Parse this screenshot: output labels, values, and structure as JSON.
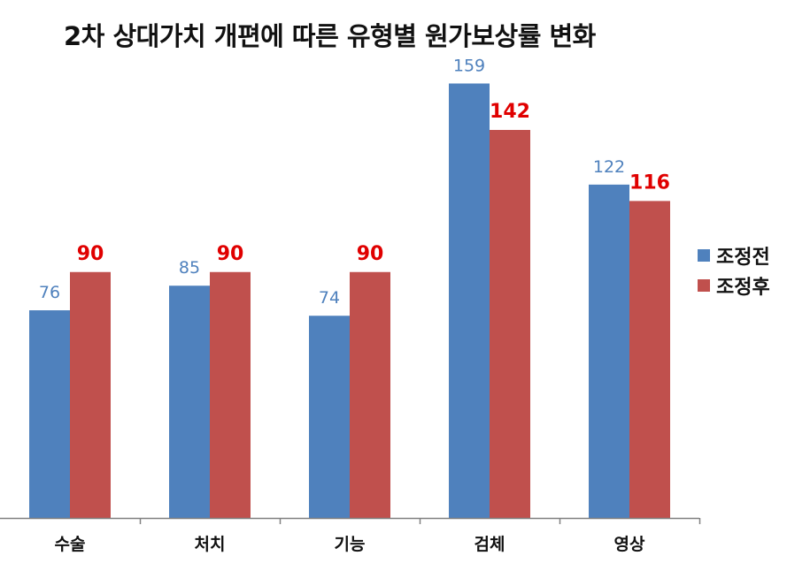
{
  "chart_data": {
    "type": "bar",
    "title": "2차 상대가치 개편에 따른 유형별 원가보상률 변화",
    "categories": [
      "수술",
      "처치",
      "기능",
      "검체",
      "영상"
    ],
    "series": [
      {
        "name": "조정전",
        "values": [
          76,
          85,
          74,
          159,
          122
        ],
        "color": "#4F81BD",
        "label_color": "#4F81BD"
      },
      {
        "name": "조정후",
        "values": [
          90,
          90,
          90,
          142,
          116
        ],
        "color": "#C0504D",
        "label_color": "#E00000"
      }
    ],
    "ylim": [
      0,
      175
    ],
    "grid": false,
    "legend": "right",
    "xlabel": "",
    "ylabel": ""
  }
}
